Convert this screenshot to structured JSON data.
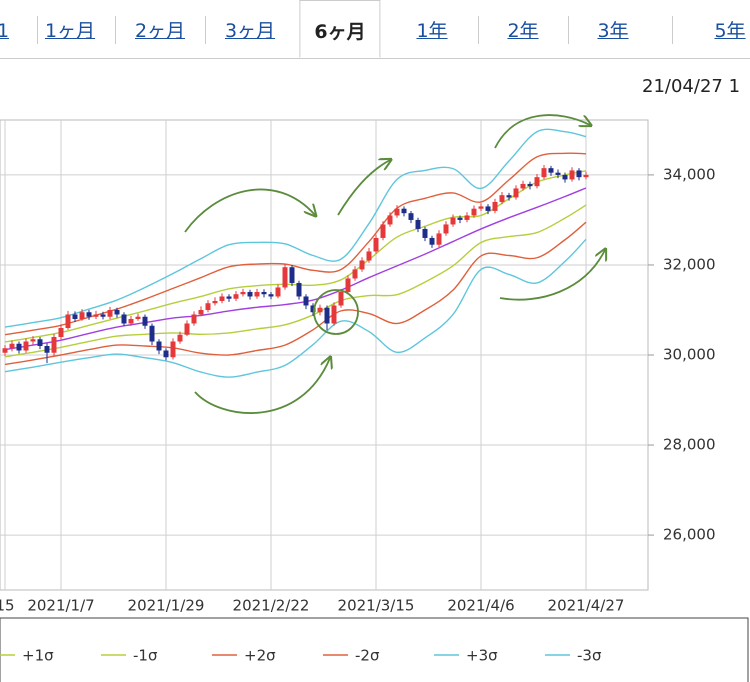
{
  "tabs": [
    "1",
    "1ヶ月",
    "2ヶ月",
    "3ヶ月",
    "6ヶ月",
    "1年",
    "2年",
    "3年",
    "5年"
  ],
  "selected_tab": 4,
  "timestamp": "21/04/27 1",
  "chart_data": {
    "type": "candlestick",
    "categories": [
      "15",
      null,
      null,
      null,
      null,
      null,
      null,
      null,
      "2021/1/7",
      null,
      null,
      null,
      null,
      null,
      null,
      null,
      null,
      null,
      null,
      null,
      null,
      null,
      null,
      "2021/1/29",
      null,
      null,
      null,
      null,
      null,
      null,
      null,
      null,
      null,
      null,
      null,
      null,
      null,
      null,
      "2021/2/22",
      null,
      null,
      null,
      null,
      null,
      null,
      null,
      null,
      null,
      null,
      null,
      null,
      null,
      null,
      "2021/3/15",
      null,
      null,
      null,
      null,
      null,
      null,
      null,
      null,
      null,
      null,
      null,
      null,
      null,
      null,
      "2021/4/6",
      null,
      null,
      null,
      null,
      null,
      null,
      null,
      null,
      null,
      null,
      null,
      null,
      null,
      null,
      "2021/4/27"
    ],
    "open": [
      30050,
      30150,
      30250,
      30100,
      30300,
      30350,
      30200,
      30050,
      30400,
      30600,
      30900,
      30800,
      30950,
      30850,
      30900,
      30850,
      31000,
      30900,
      30700,
      30800,
      30850,
      30650,
      30300,
      30100,
      29950,
      30300,
      30450,
      30700,
      30900,
      31000,
      31150,
      31200,
      31300,
      31250,
      31350,
      31400,
      31300,
      31400,
      31350,
      31300,
      31500,
      31950,
      31600,
      31300,
      31100,
      30950,
      31050,
      30700,
      31100,
      31400,
      31700,
      31900,
      32100,
      32300,
      32600,
      32900,
      33100,
      33250,
      33150,
      33000,
      32800,
      32600,
      32450,
      32700,
      32900,
      33050,
      33000,
      33100,
      33250,
      33300,
      33200,
      33400,
      33550,
      33500,
      33700,
      33800,
      33750,
      33950,
      34150,
      34050,
      34000,
      33900,
      34100,
      33950
    ],
    "high": [
      30220,
      30320,
      30300,
      30370,
      30420,
      30400,
      30260,
      30470,
      30680,
      30980,
      30970,
      31020,
      31000,
      30980,
      30960,
      31070,
      31050,
      30950,
      30870,
      30920,
      30900,
      30700,
      30350,
      30150,
      30370,
      30520,
      30770,
      30970,
      31080,
      31220,
      31280,
      31370,
      31350,
      31420,
      31470,
      31450,
      31470,
      31460,
      31400,
      31570,
      32020,
      32000,
      31650,
      31350,
      31150,
      31120,
      31100,
      31170,
      31470,
      31770,
      31970,
      32170,
      32380,
      32670,
      32970,
      33170,
      33330,
      33300,
      33200,
      33050,
      32850,
      32650,
      32770,
      32970,
      33120,
      33100,
      33170,
      33320,
      33370,
      33350,
      33470,
      33620,
      33600,
      33770,
      33870,
      33850,
      34020,
      34220,
      34200,
      34120,
      34050,
      34170,
      34150,
      34070
    ],
    "low": [
      29980,
      30080,
      30030,
      30050,
      30230,
      30130,
      29820,
      29990,
      30350,
      30560,
      30730,
      30760,
      30780,
      30800,
      30790,
      30800,
      30830,
      30640,
      30650,
      30760,
      30580,
      30220,
      30020,
      29880,
      29900,
      30250,
      30420,
      30650,
      30860,
      30950,
      31100,
      31150,
      31180,
      31200,
      31300,
      31230,
      31250,
      31280,
      31240,
      31260,
      31450,
      31530,
      31230,
      31020,
      30870,
      30880,
      30550,
      30650,
      31050,
      31350,
      31650,
      31850,
      32050,
      32250,
      32550,
      32850,
      33050,
      33080,
      32930,
      32730,
      32530,
      32380,
      32400,
      32650,
      32850,
      32930,
      32950,
      33050,
      33200,
      33130,
      33150,
      33350,
      33430,
      33450,
      33650,
      33680,
      33700,
      33900,
      33980,
      33930,
      33830,
      33850,
      33880,
      33900
    ],
    "close": [
      30150,
      30250,
      30100,
      30300,
      30350,
      30200,
      30050,
      30400,
      30600,
      30900,
      30800,
      30950,
      30850,
      30900,
      30850,
      31000,
      30900,
      30700,
      30800,
      30850,
      30650,
      30300,
      30100,
      29950,
      30300,
      30450,
      30700,
      30900,
      31000,
      31150,
      31200,
      31300,
      31250,
      31350,
      31400,
      31300,
      31400,
      31350,
      31300,
      31500,
      31950,
      31600,
      31300,
      31100,
      30950,
      31050,
      30700,
      31100,
      31400,
      31700,
      31900,
      32100,
      32300,
      32600,
      32900,
      33100,
      33250,
      33150,
      33000,
      32800,
      32600,
      32450,
      32700,
      32900,
      33050,
      33000,
      33100,
      33250,
      33300,
      33200,
      33400,
      33550,
      33500,
      33700,
      33800,
      33750,
      33950,
      34150,
      34050,
      34000,
      33900,
      34100,
      33950,
      34000
    ],
    "up_color": "#e5383b",
    "down_color": "#1f2d8a",
    "overlays": [
      {
        "color": "#a23fe0",
        "x": [
          0,
          4,
          8,
          12,
          16,
          20,
          24,
          28,
          32,
          36,
          40,
          44,
          48,
          52,
          56,
          60,
          64,
          68,
          72,
          76,
          80,
          83
        ],
        "values": [
          30120,
          30220,
          30330,
          30480,
          30620,
          30720,
          30820,
          30880,
          30980,
          31060,
          31120,
          31220,
          31440,
          31720,
          31980,
          32240,
          32520,
          32800,
          33050,
          33280,
          33520,
          33710
        ]
      },
      {
        "name": "+1σ",
        "color": "#b5cf3c",
        "x": [
          0,
          4,
          8,
          12,
          16,
          20,
          24,
          28,
          32,
          36,
          40,
          44,
          48,
          52,
          56,
          60,
          64,
          68,
          72,
          76,
          80,
          83
        ],
        "values": [
          30290,
          30390,
          30500,
          30660,
          30820,
          30980,
          31150,
          31300,
          31470,
          31540,
          31570,
          31550,
          31670,
          32120,
          32620,
          32860,
          33060,
          33100,
          33470,
          33840,
          34000,
          34090
        ]
      },
      {
        "name": "-1σ",
        "color": "#b5cf3c",
        "x": [
          0,
          4,
          8,
          12,
          16,
          20,
          24,
          28,
          32,
          36,
          40,
          44,
          48,
          52,
          56,
          60,
          64,
          68,
          72,
          76,
          80,
          83
        ],
        "values": [
          29960,
          30060,
          30170,
          30300,
          30420,
          30460,
          30490,
          30460,
          30490,
          30580,
          30670,
          30890,
          31210,
          31320,
          31340,
          31620,
          31980,
          32500,
          32630,
          32720,
          33040,
          33330
        ]
      },
      {
        "name": "+2σ",
        "color": "#e0603c",
        "x": [
          0,
          4,
          8,
          12,
          16,
          20,
          24,
          28,
          32,
          36,
          40,
          44,
          48,
          52,
          56,
          60,
          64,
          68,
          72,
          76,
          80,
          83
        ],
        "values": [
          30450,
          30550,
          30660,
          30840,
          31020,
          31240,
          31480,
          31720,
          31960,
          32020,
          32020,
          31880,
          31900,
          32520,
          33260,
          33480,
          33600,
          33400,
          33890,
          34400,
          34480,
          34470
        ]
      },
      {
        "name": "-2σ",
        "color": "#e0603c",
        "x": [
          0,
          4,
          8,
          12,
          16,
          20,
          24,
          28,
          32,
          36,
          40,
          44,
          48,
          52,
          56,
          60,
          64,
          68,
          72,
          76,
          80,
          83
        ],
        "values": [
          29790,
          29890,
          30000,
          30120,
          30220,
          30200,
          30160,
          30040,
          30000,
          30100,
          30220,
          30560,
          30980,
          30920,
          30700,
          31000,
          31440,
          32200,
          32210,
          32160,
          32560,
          32950
        ]
      },
      {
        "name": "+3σ",
        "color": "#5ec6dc",
        "x": [
          0,
          4,
          8,
          12,
          16,
          20,
          24,
          28,
          32,
          36,
          40,
          44,
          48,
          52,
          56,
          60,
          64,
          68,
          72,
          76,
          80,
          83
        ],
        "values": [
          30620,
          30720,
          30830,
          31020,
          31220,
          31500,
          31810,
          32140,
          32450,
          32500,
          32470,
          32210,
          32130,
          32920,
          33900,
          34100,
          34140,
          33700,
          34310,
          34960,
          34960,
          34850
        ]
      },
      {
        "name": "-3σ",
        "color": "#5ec6dc",
        "x": [
          0,
          4,
          8,
          12,
          16,
          20,
          24,
          28,
          32,
          36,
          40,
          44,
          48,
          52,
          56,
          60,
          64,
          68,
          72,
          76,
          80,
          83
        ],
        "values": [
          29630,
          29730,
          29840,
          29940,
          30020,
          29940,
          29830,
          29620,
          29510,
          29620,
          29770,
          30230,
          30750,
          30520,
          30060,
          30380,
          30900,
          31900,
          31790,
          31600,
          32080,
          32570
        ]
      }
    ],
    "ylim": [
      24780,
      35220
    ],
    "yticks": [
      {
        "value": 26000,
        "label": "26,000"
      },
      {
        "value": 28000,
        "label": "28,000"
      },
      {
        "value": 30000,
        "label": "30,000"
      },
      {
        "value": 32000,
        "label": "32,000"
      },
      {
        "value": 34000,
        "label": "34,000"
      }
    ],
    "grid": true
  }
}
